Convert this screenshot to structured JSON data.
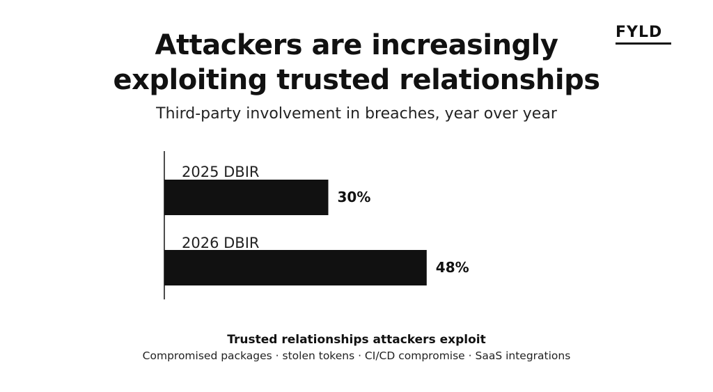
{
  "header": {
    "title_line1": "Attackers are increasingly",
    "title_line2": "exploiting trusted relationships",
    "subtitle": "Third-party involvement in breaches, year over year"
  },
  "logo": {
    "text": "FYLD"
  },
  "chart_data": {
    "type": "bar",
    "orientation": "horizontal",
    "title": "Attackers are increasingly exploiting trusted relationships",
    "subtitle": "Third-party involvement in breaches, year over year",
    "categories": [
      "2025 DBIR",
      "2026 DBIR"
    ],
    "values": [
      30,
      48
    ],
    "data_labels": [
      "30%",
      "48%"
    ],
    "xlabel": "",
    "ylabel": "",
    "xlim": [
      0,
      100
    ],
    "grid": false,
    "legend": "none",
    "bar_color": "#111111"
  },
  "footer": {
    "title": "Trusted relationships attackers exploit",
    "text": "Compromised packages · stolen tokens · CI/CD compromise · SaaS integrations"
  },
  "colors": {
    "ink": "#111111",
    "background": "#ffffff"
  }
}
